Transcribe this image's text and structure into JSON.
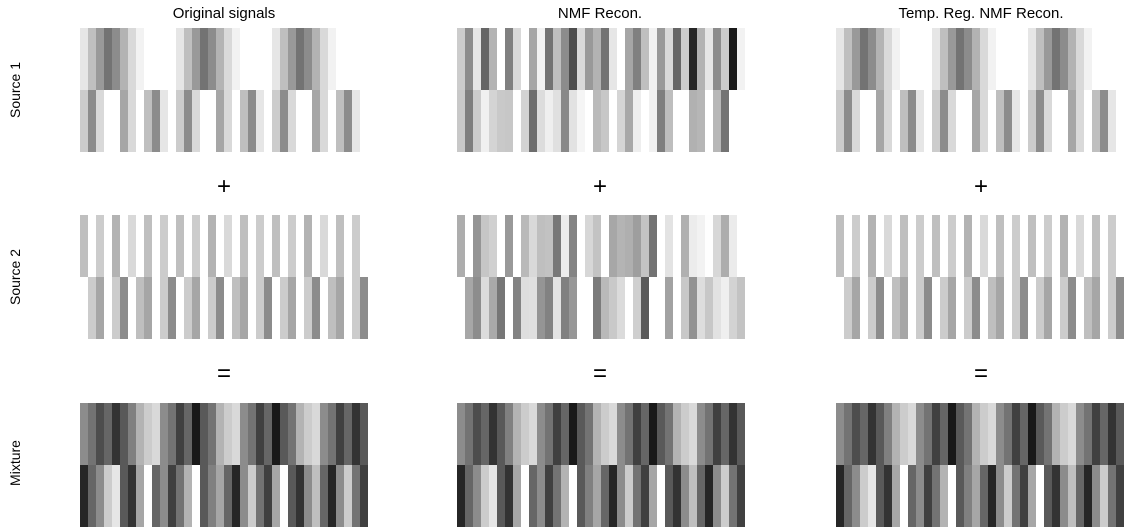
{
  "figure": {
    "column_titles": [
      "Original signals",
      "NMF Recon.",
      "Temp. Reg. NMF Recon."
    ],
    "row_labels": [
      "Source 1",
      "Source 2",
      "Mixture"
    ],
    "operators": [
      "+",
      "="
    ],
    "operator_by_gap": [
      "+",
      "="
    ],
    "panels_per_row": 3,
    "strips_per_panel": 2,
    "columns_per_strip": 36,
    "grayscale_note_intensity": {
      "source_1": {
        "original": [
          0.1,
          0.25,
          0.4,
          0.55,
          0.45,
          0.3,
          0.15,
          0.05,
          0,
          0,
          0,
          0,
          0.1,
          0.25,
          0.4,
          0.55,
          0.45,
          0.3,
          0.15,
          0.05,
          0,
          0,
          0,
          0,
          0.1,
          0.25,
          0.4,
          0.55,
          0.45,
          0.3,
          0.15,
          0.05,
          0,
          0,
          0,
          0
        ],
        "nmf": [
          0.2,
          0.45,
          0.1,
          0.6,
          0.3,
          0.0,
          0.5,
          0.15,
          0.0,
          0.35,
          0.05,
          0.55,
          0.25,
          0.45,
          0.7,
          0.15,
          0.4,
          0.3,
          0.55,
          0.1,
          0.0,
          0.35,
          0.5,
          0.25,
          0.05,
          0.4,
          0.15,
          0.6,
          0.2,
          0.85,
          0.3,
          0.1,
          0.45,
          0.2,
          0.9,
          0.05
        ],
        "temp_reg": [
          0.1,
          0.25,
          0.4,
          0.55,
          0.45,
          0.3,
          0.15,
          0.05,
          0,
          0,
          0,
          0,
          0.1,
          0.25,
          0.4,
          0.55,
          0.45,
          0.3,
          0.15,
          0.05,
          0,
          0,
          0,
          0,
          0.1,
          0.25,
          0.4,
          0.55,
          0.45,
          0.3,
          0.15,
          0.05,
          0,
          0,
          0,
          0
        ]
      }
    }
  }
}
